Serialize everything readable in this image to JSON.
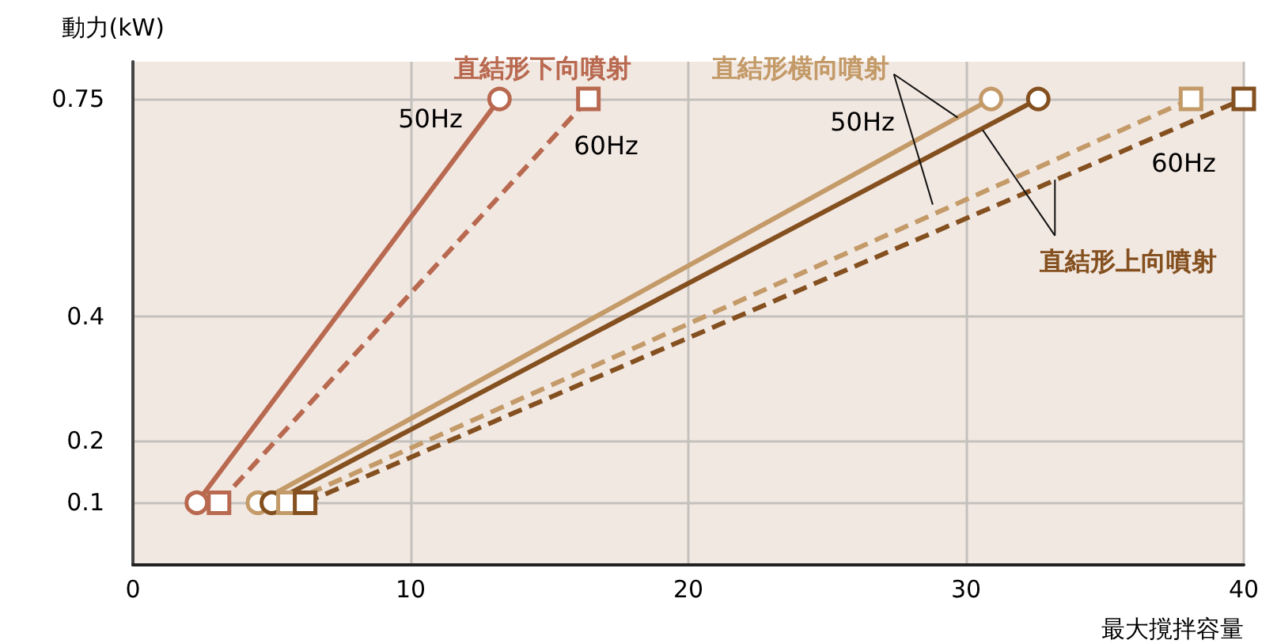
{
  "chart_data": {
    "type": "line",
    "xlabel": "最大撹拌容量",
    "ylabel": "動力(kW)",
    "xlim": [
      0,
      40
    ],
    "xticks": [
      0,
      10,
      20,
      30,
      40
    ],
    "ylim": [
      0,
      0.81
    ],
    "yticks": [
      0.1,
      0.2,
      0.4,
      0.75
    ],
    "grid": true,
    "series": [
      {
        "color": "#b8694f",
        "marker": "circle",
        "line_style": "solid",
        "x": [
          2.3,
          13.2
        ],
        "values": [
          0.1,
          0.75
        ]
      },
      {
        "color": "#b8694f",
        "marker": "square",
        "line_style": "dashed",
        "x": [
          3.1,
          16.4
        ],
        "values": [
          0.1,
          0.75
        ]
      },
      {
        "color": "#c39a68",
        "marker": "circle",
        "line_style": "solid",
        "x": [
          4.5,
          30.9
        ],
        "values": [
          0.1,
          0.75
        ]
      },
      {
        "color": "#84501f",
        "marker": "circle",
        "line_style": "solid",
        "x": [
          5.0,
          32.6
        ],
        "values": [
          0.1,
          0.75
        ]
      },
      {
        "color": "#c39a68",
        "marker": "square",
        "line_style": "dashed",
        "x": [
          5.6,
          38.1
        ],
        "values": [
          0.1,
          0.75
        ]
      },
      {
        "color": "#84501f",
        "marker": "square",
        "line_style": "dashed",
        "x": [
          6.2,
          40
        ],
        "values": [
          0.1,
          0.75
        ]
      }
    ],
    "annotations": [
      "直結形下向噴射",
      "50Hz",
      "60Hz",
      {
        "text": "直結形横向噴射",
        "x": 29.7,
        "y": 0.72
      },
      "50Hz",
      "60Hz",
      {
        "text": "直結形上向噴射",
        "x": 30.6,
        "y": 0.7
      }
    ]
  }
}
